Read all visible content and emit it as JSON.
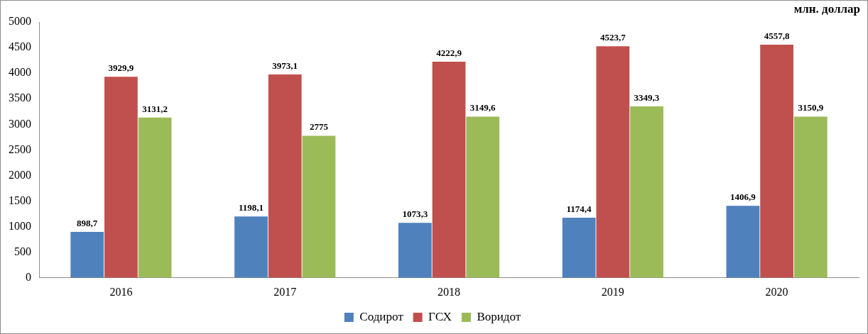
{
  "chart_data": {
    "type": "bar",
    "annotations": [
      "млн. доллар"
    ],
    "categories": [
      "2016",
      "2017",
      "2018",
      "2019",
      "2020"
    ],
    "series": [
      {
        "name": "Содирот",
        "color": "#4f81bd",
        "values": [
          898.7,
          1198.1,
          1073.3,
          1174.4,
          1406.9
        ],
        "value_labels": [
          "898,7",
          "1198,1",
          "1073,3",
          "1174,4",
          "1406,9"
        ]
      },
      {
        "name": "ГСХ",
        "color": "#c0504d",
        "values": [
          3929.9,
          3973.1,
          4222.9,
          4523.7,
          4557.8
        ],
        "value_labels": [
          "3929,9",
          "3973,1",
          "4222,9",
          "4523,7",
          "4557,8"
        ]
      },
      {
        "name": "Воридот",
        "color": "#9bbb59",
        "values": [
          3131.2,
          2775,
          3149.6,
          3349.3,
          3150.9
        ],
        "value_labels": [
          "3131,2",
          "2775",
          "3149,6",
          "3349,3",
          "3150,9"
        ]
      }
    ],
    "ylim": [
      0,
      5000
    ],
    "yticks": [
      0,
      500,
      1000,
      1500,
      2000,
      2500,
      3000,
      3500,
      4000,
      4500,
      5000
    ],
    "grid": false,
    "legend": "bottom",
    "data_labels": true
  }
}
